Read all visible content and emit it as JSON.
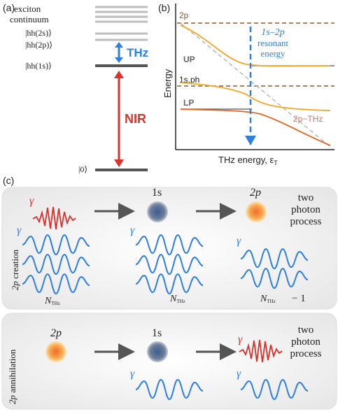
{
  "panel_a": {
    "label": "(a)",
    "continuum_label_1": "exciton",
    "continuum_label_2": "continuum",
    "hh2s": "|hh(2s)⟩",
    "hh2p": "|hh(2p)⟩",
    "hh1s": "|hh(1s)⟩",
    "ground": "|0⟩",
    "thz_label": "THz",
    "nir_label": "NIR",
    "colors": {
      "thz": "#2f7fe0",
      "nir": "#e0302a",
      "level": "#555555",
      "continuum": "#bdbdbd"
    }
  },
  "panel_b": {
    "label": "(b)",
    "ylabel": "Energy",
    "xlabel": "THz energy, ε",
    "xlabel_sub": "T",
    "line_2p": "2p",
    "line_up": "UP",
    "line_1sph": "1s,ph",
    "line_lp": "LP",
    "line_2pthz": "2p−THz",
    "resonant_1": "1s–2p",
    "resonant_2": "resonant",
    "resonant_3": "energy",
    "colors": {
      "upper": "#f5a623",
      "lower": "#e8631c",
      "dashed_brown": "#8b5a2b",
      "resonant": "#2f7fe0",
      "thz_line": "#c97a6a"
    }
  },
  "panel_c": {
    "label": "(c)",
    "creation": {
      "side_label_italic": "2p",
      "side_label_rest": " creation",
      "gamma": "γ",
      "state_1s": "1s",
      "state_2p": "2p",
      "process_1": "two",
      "process_2": "photon",
      "process_3": "process",
      "n_thz_1": "N",
      "n_thz_2": "N",
      "n_thz_3": "N",
      "n_sub": "THz",
      "minus_one": "− 1"
    },
    "annihilation": {
      "side_label_italic": "2p",
      "side_label_rest": " annihilation",
      "state_2p": "2p",
      "state_1s": "1s",
      "gamma": "γ",
      "process_1": "two",
      "process_2": "photon",
      "process_3": "process"
    },
    "colors": {
      "wave_blue": "#2f7fe0",
      "wave_red": "#d9302a",
      "arrow": "#555555",
      "panel_bg": "#ececec"
    }
  }
}
